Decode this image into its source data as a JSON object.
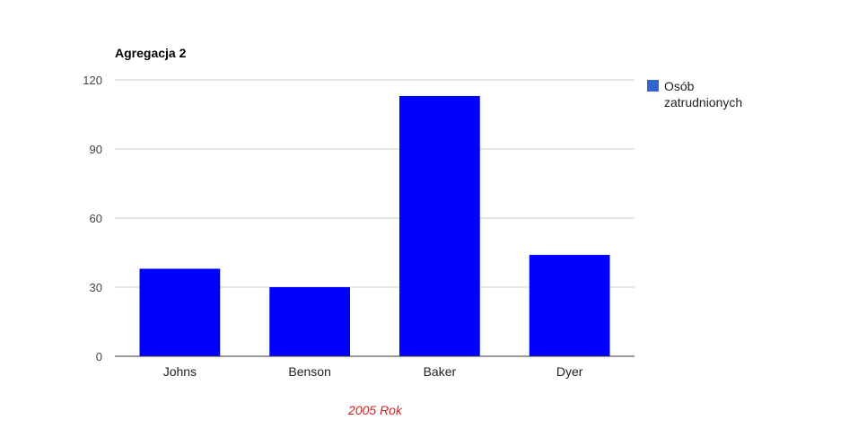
{
  "chart_data": {
    "type": "bar",
    "title": "Agregacja 2",
    "xlabel": "2005 Rok",
    "ylabel": "",
    "categories": [
      "Johns",
      "Benson",
      "Baker",
      "Dyer"
    ],
    "series": [
      {
        "name": "Osób zatrudnionych",
        "values": [
          38,
          30,
          113,
          44
        ]
      }
    ],
    "ylim": [
      0,
      120
    ],
    "yticks": [
      0,
      30,
      60,
      90,
      120
    ],
    "grid": true,
    "legend_position": "right",
    "legend_lines": [
      "Osób",
      "zatrudnionych"
    ],
    "colors": {
      "bar": "#0000ff",
      "legend_swatch": "#3366cc",
      "xlabel": "#cc2222"
    }
  }
}
